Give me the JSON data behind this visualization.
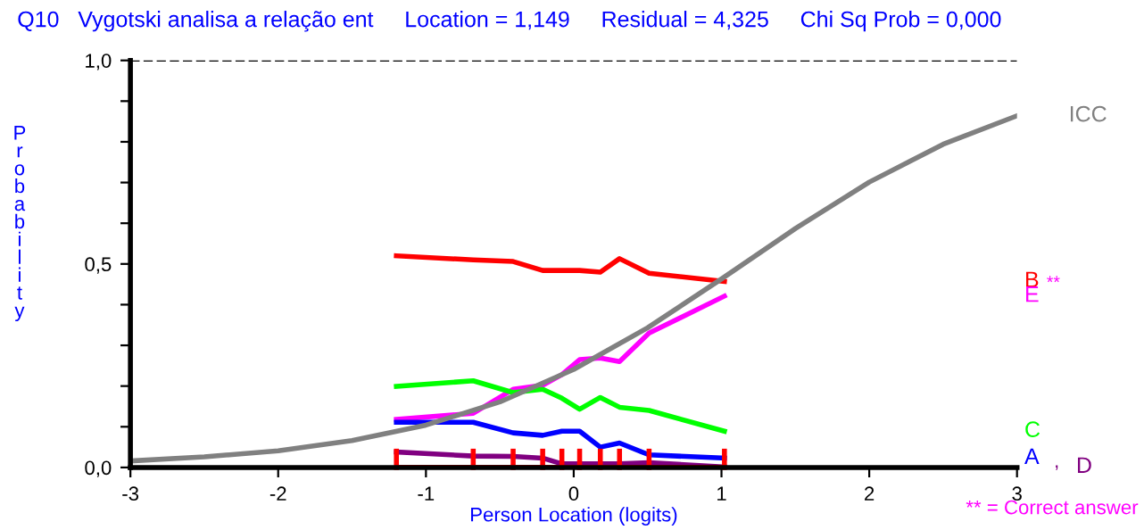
{
  "chart_data": {
    "type": "line",
    "title": "Q10   Vygotski analisa a relação ent     Location = 1,149     Residual = 4,325     Chi Sq Prob = 0,000",
    "xlabel": "Person Location (logits)",
    "ylabel": "Probability",
    "xlim": [
      -3,
      3
    ],
    "xticks": [
      -3,
      -2,
      -1,
      0,
      1,
      2,
      3
    ],
    "ylim": [
      0,
      1
    ],
    "yticks": [
      {
        "value": 0,
        "label": "0,0"
      },
      {
        "value": 0.1,
        "label": null
      },
      {
        "value": 0.2,
        "label": null
      },
      {
        "value": 0.3,
        "label": null
      },
      {
        "value": 0.4,
        "label": null
      },
      {
        "value": 0.5,
        "label": "0,5"
      },
      {
        "value": 0.6,
        "label": null
      },
      {
        "value": 0.7,
        "label": null
      },
      {
        "value": 0.8,
        "label": null
      },
      {
        "value": 0.9,
        "label": null
      },
      {
        "value": 1,
        "label": "1,0"
      }
    ],
    "x": [
      -1.2,
      -0.68,
      -0.41,
      -0.21,
      -0.08,
      0.04,
      0.18,
      0.31,
      0.51,
      1.02
    ],
    "series": [
      {
        "name": "B",
        "color": "#ff0000",
        "values": [
          0.52,
          0.51,
          0.506,
          0.484,
          0.484,
          0.484,
          0.48,
          0.513,
          0.477,
          0.457
        ]
      },
      {
        "name": "E",
        "color": "#ff00ff",
        "values": [
          0.118,
          0.133,
          0.192,
          0.202,
          0.228,
          0.265,
          0.269,
          0.26,
          0.33,
          0.421
        ]
      },
      {
        "name": "C",
        "color": "#00ff00",
        "values": [
          0.199,
          0.213,
          0.184,
          0.192,
          0.17,
          0.143,
          0.172,
          0.148,
          0.14,
          0.089
        ]
      },
      {
        "name": "A",
        "color": "#0000ff",
        "values": [
          0.111,
          0.111,
          0.085,
          0.079,
          0.089,
          0.089,
          0.05,
          0.06,
          0.031,
          0.023
        ]
      },
      {
        "name": "D",
        "color": "#800080",
        "values": [
          0.038,
          0.028,
          0.027,
          0.023,
          0.009,
          0.009,
          0.009,
          0.009,
          0.012,
          0.001
        ]
      },
      {
        "name": "ICC",
        "color": "#808080",
        "x": [
          -3,
          -2.5,
          -2,
          -1.5,
          -1,
          -0.5,
          0,
          0.5,
          1,
          1.5,
          2,
          2.5,
          3
        ],
        "values": [
          0.016,
          0.026,
          0.041,
          0.066,
          0.104,
          0.161,
          0.241,
          0.343,
          0.463,
          0.587,
          0.701,
          0.794,
          0.864
        ]
      }
    ],
    "ref_lines": [
      {
        "axis": "y",
        "value": 1,
        "label": null,
        "color": "#000000",
        "line_style": "dashed"
      }
    ],
    "annotations": [
      "**",
      ",",
      "** = Correct answer"
    ],
    "grid": false,
    "legend": false,
    "marker": "none",
    "line_style": "solid"
  }
}
